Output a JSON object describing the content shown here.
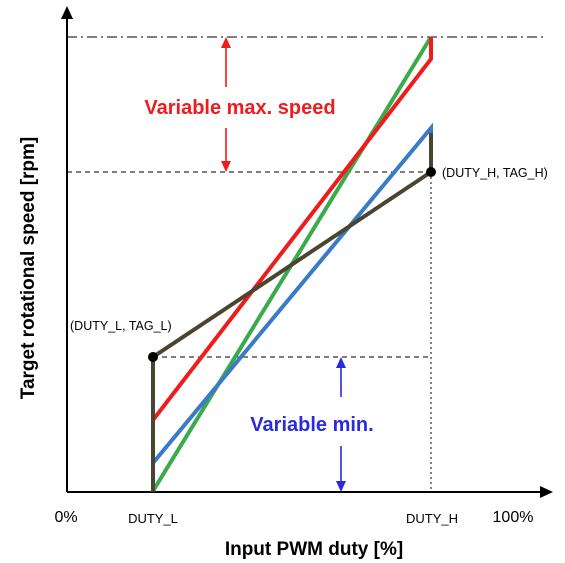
{
  "axes": {
    "xlabel": "Input PWM duty [%]",
    "ylabel": "Target rotational speed [rpm]",
    "x_ticks": {
      "zero": "0%",
      "duty_l": "DUTY_L",
      "duty_h": "DUTY_H",
      "hundred": "100%"
    }
  },
  "points": {
    "low": "(DUTY_L, TAG_L)",
    "high": "(DUTY_H, TAG_H)"
  },
  "callouts": {
    "max_speed": "Variable max. speed",
    "min_speed": "Variable min."
  },
  "colors": {
    "red": "#ee1c1c",
    "green": "#3aaa4a",
    "blue": "#3a7ac8",
    "dark": "#4a4530",
    "callout_red": "#ee1c1c",
    "callout_blue": "#2a2ae0"
  },
  "lines": [
    {
      "name": "dark",
      "color": "dark"
    },
    {
      "name": "red",
      "color": "red"
    },
    {
      "name": "blue",
      "color": "blue"
    },
    {
      "name": "green",
      "color": "green"
    }
  ]
}
